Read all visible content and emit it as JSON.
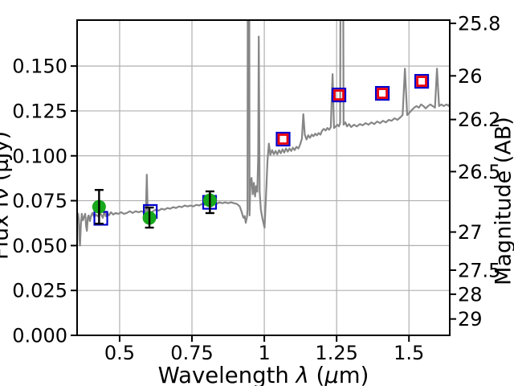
{
  "figure": {
    "background": "#ffffff",
    "xlabel_parts": {
      "pre": "Wavelength ",
      "lambda": "λ",
      "open": " (",
      "mu": "μ",
      "close": "m)"
    },
    "colors": {
      "spectrum_line": "#868686",
      "gridline": "#b0b0b0",
      "axis": "#000000",
      "green_marker": "#17a81b",
      "blue_marker": "#0000cc",
      "red_marker": "#e8000d",
      "errorbar": "#000000"
    }
  },
  "chart_data": {
    "type": "line",
    "title": "",
    "xlabel": "Wavelength λ (μm)",
    "ylabel_left_partially_clipped": "Flux fν (μJy)",
    "ylabel_right": "Magnitude (AB)",
    "xlim": [
      0.353,
      1.641
    ],
    "ylim": [
      0,
      0.1756
    ],
    "grid": true,
    "legend": "none",
    "mag_zeropoint_ab_uJy": 23.9,
    "xticks": {
      "values": [
        0.5,
        0.75,
        1.0,
        1.25,
        1.5
      ],
      "labels": [
        "0.5",
        "0.75",
        "1",
        "1.25",
        "1.5"
      ]
    },
    "yticks_left": {
      "values": [
        0.0,
        0.025,
        0.05,
        0.075,
        0.1,
        0.125,
        0.15
      ],
      "labels": [
        "0.000",
        "0.025",
        "0.050",
        "0.075",
        "0.100",
        "0.125",
        "0.150"
      ]
    },
    "yticks_right": {
      "values": [
        25.8,
        26,
        26.2,
        26.5,
        27,
        27.5,
        28,
        29
      ],
      "labels": [
        "25.8",
        "26",
        "26.2",
        "26.5",
        "27",
        "27.5",
        "28",
        "29"
      ]
    },
    "series": [
      {
        "name": "observed-spectrum",
        "kind": "line",
        "color": "#868686",
        "linewidth": 2.2,
        "points": [
          [
            0.356,
            0.0682
          ],
          [
            0.359,
            0.0641
          ],
          [
            0.361,
            0.0536
          ],
          [
            0.363,
            0.05
          ],
          [
            0.366,
            0.0614
          ],
          [
            0.369,
            0.0677
          ],
          [
            0.373,
            0.0641
          ],
          [
            0.377,
            0.0659
          ],
          [
            0.381,
            0.0677
          ],
          [
            0.384,
            0.0609
          ],
          [
            0.387,
            0.0582
          ],
          [
            0.39,
            0.0655
          ],
          [
            0.393,
            0.0668
          ],
          [
            0.397,
            0.0636
          ],
          [
            0.401,
            0.0664
          ],
          [
            0.406,
            0.0682
          ],
          [
            0.412,
            0.0659
          ],
          [
            0.418,
            0.0673
          ],
          [
            0.424,
            0.0664
          ],
          [
            0.43,
            0.0677
          ],
          [
            0.436,
            0.0673
          ],
          [
            0.442,
            0.0655
          ],
          [
            0.447,
            0.0691
          ],
          [
            0.452,
            0.0664
          ],
          [
            0.457,
            0.0682
          ],
          [
            0.463,
            0.0668
          ],
          [
            0.47,
            0.0686
          ],
          [
            0.478,
            0.0673
          ],
          [
            0.486,
            0.0682
          ],
          [
            0.495,
            0.0677
          ],
          [
            0.505,
            0.0686
          ],
          [
            0.515,
            0.0677
          ],
          [
            0.525,
            0.0682
          ],
          [
            0.535,
            0.0691
          ],
          [
            0.545,
            0.0682
          ],
          [
            0.555,
            0.0691
          ],
          [
            0.565,
            0.0686
          ],
          [
            0.575,
            0.0691
          ],
          [
            0.585,
            0.0686
          ],
          [
            0.591,
            0.0695
          ],
          [
            0.594,
            0.0895
          ],
          [
            0.597,
            0.0686
          ],
          [
            0.605,
            0.0682
          ],
          [
            0.615,
            0.0691
          ],
          [
            0.625,
            0.07
          ],
          [
            0.635,
            0.0695
          ],
          [
            0.645,
            0.0705
          ],
          [
            0.655,
            0.07
          ],
          [
            0.665,
            0.0709
          ],
          [
            0.675,
            0.0705
          ],
          [
            0.685,
            0.0714
          ],
          [
            0.695,
            0.0709
          ],
          [
            0.705,
            0.0718
          ],
          [
            0.715,
            0.0714
          ],
          [
            0.725,
            0.0723
          ],
          [
            0.735,
            0.0718
          ],
          [
            0.745,
            0.0723
          ],
          [
            0.755,
            0.0718
          ],
          [
            0.765,
            0.0727
          ],
          [
            0.775,
            0.0723
          ],
          [
            0.785,
            0.0732
          ],
          [
            0.795,
            0.0727
          ],
          [
            0.805,
            0.0736
          ],
          [
            0.815,
            0.0732
          ],
          [
            0.825,
            0.0736
          ],
          [
            0.835,
            0.0732
          ],
          [
            0.845,
            0.0741
          ],
          [
            0.855,
            0.0736
          ],
          [
            0.865,
            0.0741
          ],
          [
            0.875,
            0.0736
          ],
          [
            0.885,
            0.0741
          ],
          [
            0.895,
            0.0736
          ],
          [
            0.905,
            0.0732
          ],
          [
            0.915,
            0.0718
          ],
          [
            0.922,
            0.0686
          ],
          [
            0.928,
            0.0655
          ],
          [
            0.932,
            0.0664
          ],
          [
            0.936,
            0.0627
          ],
          [
            0.94,
            0.0659
          ],
          [
            0.942,
            0.07
          ],
          [
            0.944,
            0.35
          ],
          [
            0.947,
            0.35
          ],
          [
            0.949,
            0.0668
          ],
          [
            0.952,
            0.0855
          ],
          [
            0.956,
            0.0877
          ],
          [
            0.96,
            0.0786
          ],
          [
            0.964,
            0.085
          ],
          [
            0.968,
            0.0773
          ],
          [
            0.972,
            0.0832
          ],
          [
            0.976,
            0.08
          ],
          [
            0.979,
            0.1
          ],
          [
            0.981,
            0.1664
          ],
          [
            0.984,
            0.08
          ],
          [
            0.988,
            0.07
          ],
          [
            0.993,
            0.0655
          ],
          [
            0.998,
            0.0618
          ],
          [
            1.001,
            0.06
          ],
          [
            1.006,
            0.0773
          ],
          [
            1.011,
            0.0968
          ],
          [
            1.016,
            0.1068
          ],
          [
            1.021,
            0.1005
          ],
          [
            1.027,
            0.1032
          ],
          [
            1.033,
            0.1009
          ],
          [
            1.039,
            0.1027
          ],
          [
            1.045,
            0.1009
          ],
          [
            1.051,
            0.1032
          ],
          [
            1.057,
            0.1014
          ],
          [
            1.063,
            0.1036
          ],
          [
            1.069,
            0.1018
          ],
          [
            1.075,
            0.1041
          ],
          [
            1.081,
            0.1023
          ],
          [
            1.087,
            0.1041
          ],
          [
            1.093,
            0.1027
          ],
          [
            1.099,
            0.1045
          ],
          [
            1.105,
            0.1032
          ],
          [
            1.111,
            0.105
          ],
          [
            1.118,
            0.1041
          ],
          [
            1.124,
            0.1064
          ],
          [
            1.13,
            0.1095
          ],
          [
            1.135,
            0.1232
          ],
          [
            1.14,
            0.1118
          ],
          [
            1.146,
            0.1091
          ],
          [
            1.152,
            0.1114
          ],
          [
            1.158,
            0.11
          ],
          [
            1.164,
            0.1118
          ],
          [
            1.17,
            0.1109
          ],
          [
            1.176,
            0.1123
          ],
          [
            1.182,
            0.1114
          ],
          [
            1.188,
            0.1127
          ],
          [
            1.194,
            0.1118
          ],
          [
            1.2,
            0.1141
          ],
          [
            1.206,
            0.115
          ],
          [
            1.212,
            0.1141
          ],
          [
            1.218,
            0.1155
          ],
          [
            1.224,
            0.1145
          ],
          [
            1.23,
            0.116
          ],
          [
            1.236,
            0.1455
          ],
          [
            1.241,
            0.1155
          ],
          [
            1.247,
            0.1164
          ],
          [
            1.253,
            0.1173
          ],
          [
            1.258,
            0.1164
          ],
          [
            1.262,
            0.1182
          ],
          [
            1.266,
            0.35
          ],
          [
            1.27,
            0.35
          ],
          [
            1.274,
            0.1173
          ],
          [
            1.28,
            0.1186
          ],
          [
            1.286,
            0.1164
          ],
          [
            1.293,
            0.1177
          ],
          [
            1.3,
            0.116
          ],
          [
            1.31,
            0.1173
          ],
          [
            1.32,
            0.1164
          ],
          [
            1.33,
            0.1177
          ],
          [
            1.34,
            0.117
          ],
          [
            1.35,
            0.1182
          ],
          [
            1.36,
            0.1173
          ],
          [
            1.37,
            0.1186
          ],
          [
            1.38,
            0.1177
          ],
          [
            1.39,
            0.1191
          ],
          [
            1.4,
            0.1182
          ],
          [
            1.41,
            0.1195
          ],
          [
            1.42,
            0.1186
          ],
          [
            1.43,
            0.12
          ],
          [
            1.44,
            0.1195
          ],
          [
            1.45,
            0.1209
          ],
          [
            1.46,
            0.12
          ],
          [
            1.47,
            0.1214
          ],
          [
            1.478,
            0.1227
          ],
          [
            1.486,
            0.1486
          ],
          [
            1.494,
            0.1227
          ],
          [
            1.502,
            0.1241
          ],
          [
            1.51,
            0.1255
          ],
          [
            1.518,
            0.1268
          ],
          [
            1.526,
            0.1277
          ],
          [
            1.534,
            0.1268
          ],
          [
            1.542,
            0.1286
          ],
          [
            1.55,
            0.1277
          ],
          [
            1.558,
            0.1264
          ],
          [
            1.566,
            0.1277
          ],
          [
            1.574,
            0.1286
          ],
          [
            1.582,
            0.1277
          ],
          [
            1.59,
            0.1268
          ],
          [
            1.597,
            0.1486
          ],
          [
            1.604,
            0.1277
          ],
          [
            1.612,
            0.1286
          ],
          [
            1.62,
            0.1277
          ],
          [
            1.63,
            0.1286
          ],
          [
            1.638,
            0.1277
          ],
          [
            1.641,
            0.1291
          ]
        ]
      },
      {
        "name": "photometry-green-filled-circles",
        "kind": "scatter",
        "marker": "filled-circle",
        "color": "#17a81b",
        "size": 17,
        "errorbar_color": "#000000",
        "points": [
          {
            "x": 0.429,
            "y": 0.0716,
            "yerr_plus": 0.0094,
            "yerr_minus": 0.0094
          },
          {
            "x": 0.603,
            "y": 0.0654,
            "yerr_plus": 0.0058,
            "yerr_minus": 0.0054
          },
          {
            "x": 0.812,
            "y": 0.0752,
            "yerr_plus": 0.005,
            "yerr_minus": 0.0071
          }
        ]
      },
      {
        "name": "photometry-blue-open-squares",
        "kind": "scatter",
        "marker": "open-square",
        "color": "#0000cc",
        "size": 16,
        "points": [
          {
            "x": 0.435,
            "y": 0.0652
          },
          {
            "x": 0.606,
            "y": 0.069
          },
          {
            "x": 0.811,
            "y": 0.0741
          },
          {
            "x": 1.065,
            "y": 0.1093
          },
          {
            "x": 1.258,
            "y": 0.1339
          },
          {
            "x": 1.408,
            "y": 0.1348
          },
          {
            "x": 1.544,
            "y": 0.1415
          }
        ]
      },
      {
        "name": "photometry-red-open-squares",
        "kind": "scatter",
        "marker": "open-square",
        "color": "#e8000d",
        "size": 11,
        "points": [
          {
            "x": 1.065,
            "y": 0.1093
          },
          {
            "x": 1.258,
            "y": 0.1339
          },
          {
            "x": 1.408,
            "y": 0.1348
          },
          {
            "x": 1.544,
            "y": 0.1415
          }
        ]
      }
    ]
  }
}
